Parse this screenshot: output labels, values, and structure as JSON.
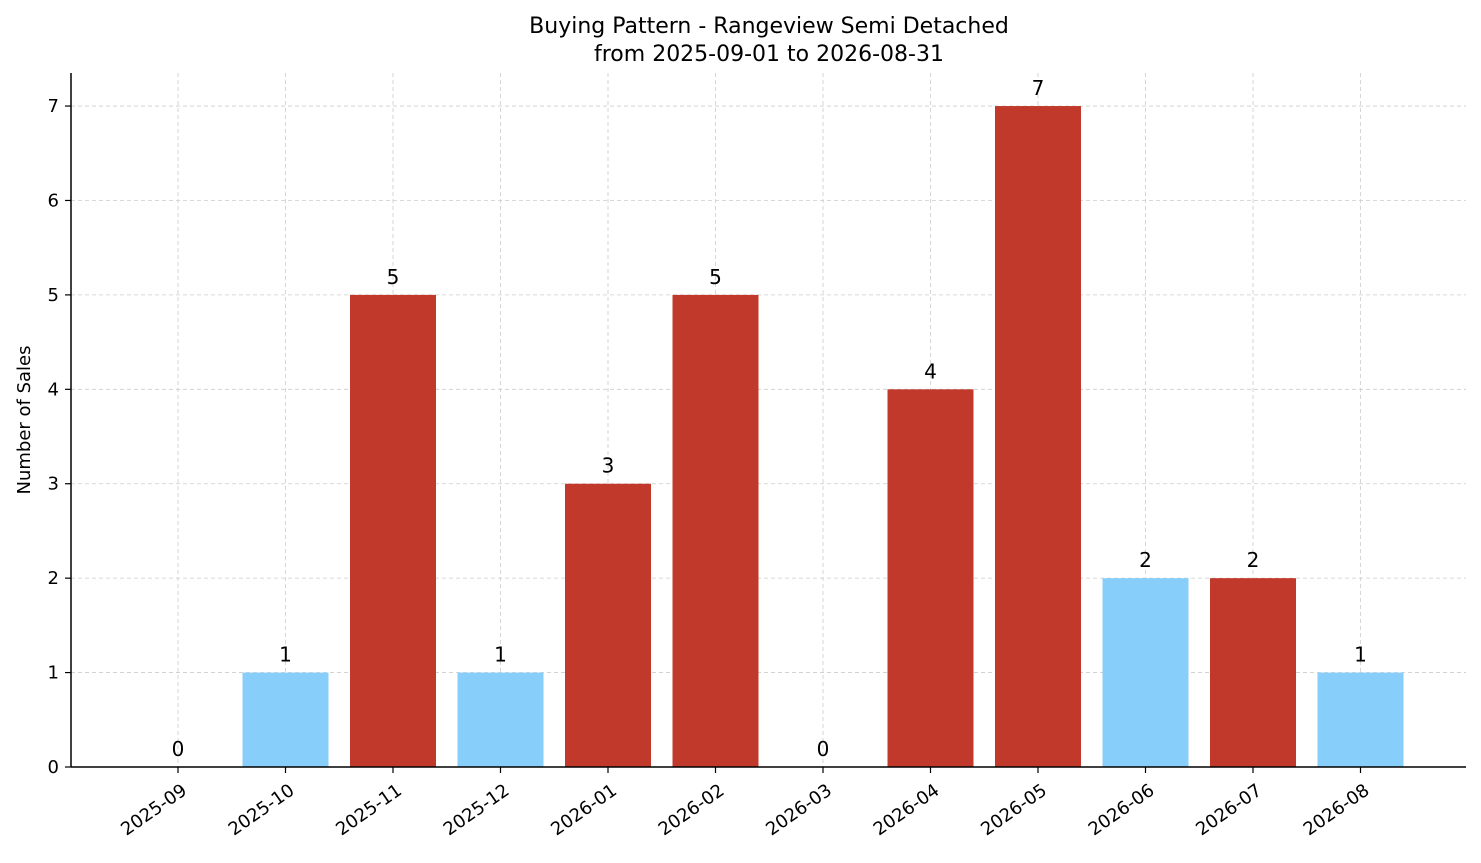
{
  "chart_data": {
    "type": "bar",
    "title": "Buying Pattern - Rangeview Semi Detached",
    "subtitle": "from 2025-09-01 to 2026-08-31",
    "xlabel": "",
    "ylabel": "Number of Sales",
    "categories": [
      "2025-09",
      "2025-10",
      "2025-11",
      "2025-12",
      "2026-01",
      "2026-02",
      "2026-03",
      "2026-04",
      "2026-05",
      "2026-06",
      "2026-07",
      "2026-08"
    ],
    "values": [
      0,
      1,
      5,
      1,
      3,
      5,
      0,
      4,
      7,
      2,
      2,
      1
    ],
    "bar_colors": [
      "#87CEFA",
      "#87CEFA",
      "#C0392B",
      "#87CEFA",
      "#C0392B",
      "#C0392B",
      "#87CEFA",
      "#C0392B",
      "#C0392B",
      "#87CEFA",
      "#C0392B",
      "#87CEFA"
    ],
    "yticks": [
      0,
      1,
      2,
      3,
      4,
      5,
      6,
      7
    ],
    "ylim": [
      0,
      7.35
    ],
    "grid": true,
    "legend": "none"
  }
}
